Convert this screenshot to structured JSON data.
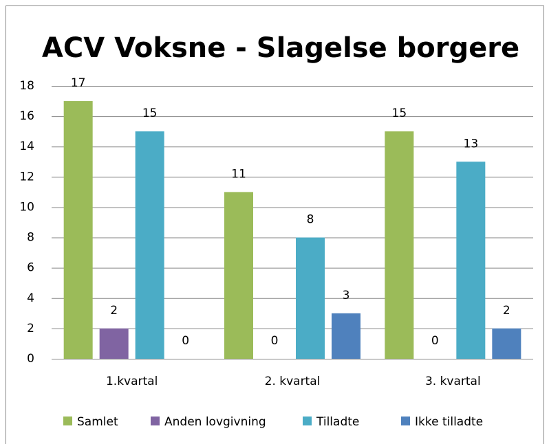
{
  "chart_data": {
    "type": "bar",
    "title": "ACV Voksne - Slagelse borgere",
    "categories": [
      "1.kvartal",
      "2. kvartal",
      "3. kvartal"
    ],
    "series": [
      {
        "name": "Samlet",
        "color": "#9bbb59",
        "values": [
          17,
          11,
          15
        ]
      },
      {
        "name": "Anden lovgivning",
        "color": "#8064a2",
        "values": [
          2,
          0,
          0
        ]
      },
      {
        "name": "Tilladte",
        "color": "#4bacc6",
        "values": [
          15,
          8,
          13
        ]
      },
      {
        "name": "Ikke tilladte",
        "color": "#4f81bd",
        "values": [
          0,
          3,
          2
        ]
      }
    ],
    "ylim": [
      0,
      18
    ],
    "yticks": [
      0,
      2,
      4,
      6,
      8,
      10,
      12,
      14,
      16,
      18
    ],
    "grid": true,
    "legend": "bottom"
  }
}
